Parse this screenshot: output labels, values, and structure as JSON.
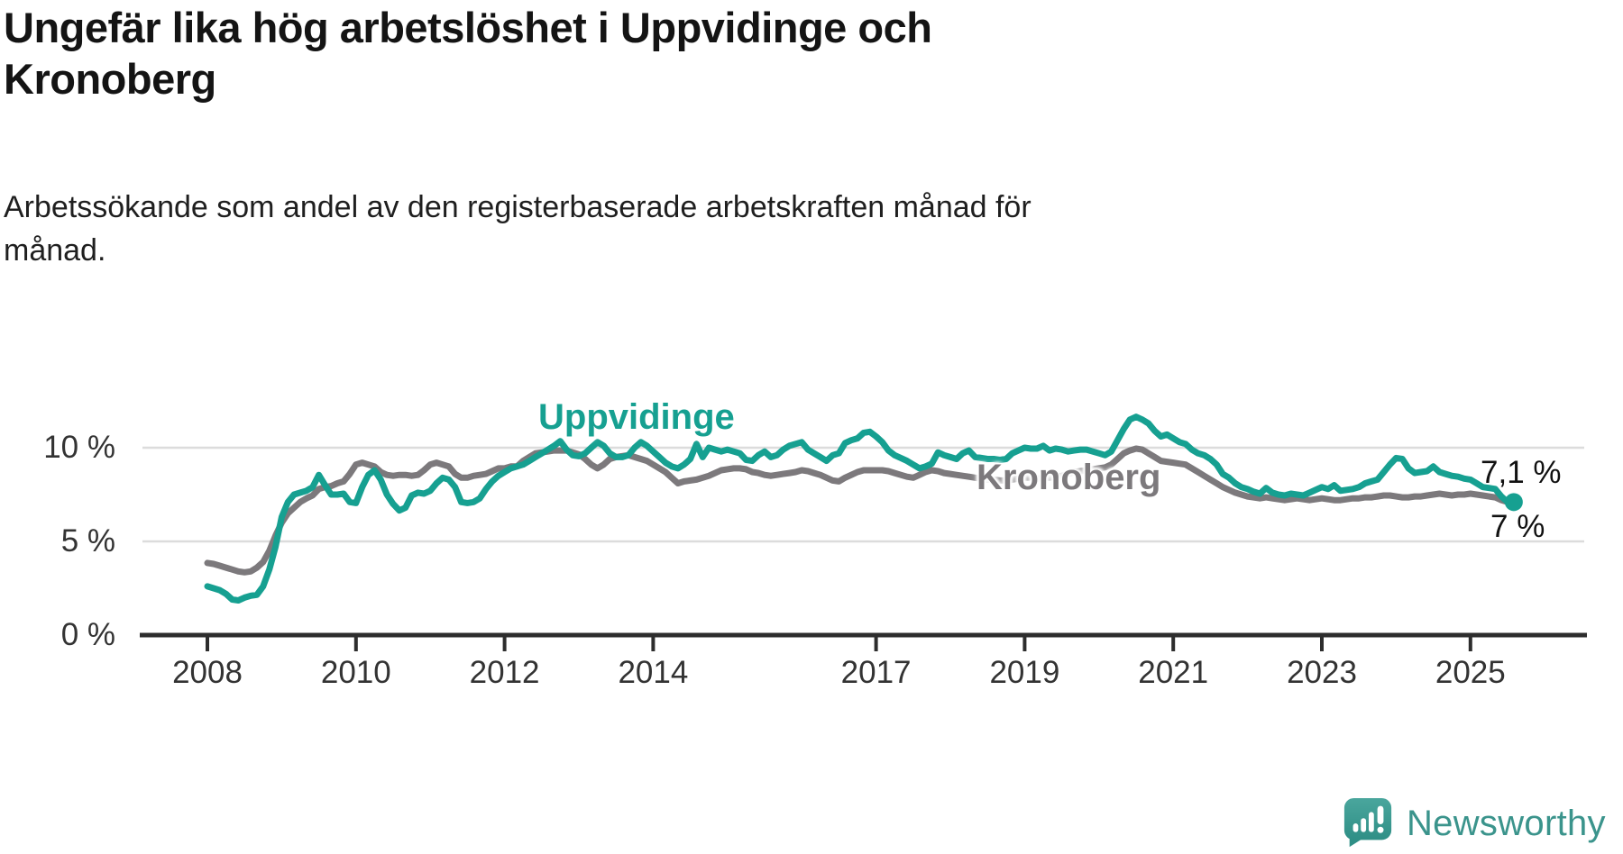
{
  "header": {
    "title": "Ungefär lika hög arbetslöshet i Uppvidinge och\nKronoberg",
    "subtitle": "Arbetssökande som andel av den registerbaserade arbetskraften månad för\nmånad."
  },
  "chart_data": {
    "type": "line",
    "title": "Ungefär lika hög arbetslöshet i Uppvidinge och Kronoberg",
    "subtitle": "Arbetssökande som andel av den registerbaserade arbetskraften månad för månad.",
    "unit": "%",
    "x_start_year": 2008,
    "x_step_months": 1,
    "x_end_label": "aug 2025",
    "grid": "horizontal-only",
    "y_axis": {
      "range": [
        0,
        12.5
      ],
      "ticks": [
        {
          "label": "0 %",
          "value": 0
        },
        {
          "label": "5 %",
          "value": 5
        },
        {
          "label": "10 %",
          "value": 10
        }
      ]
    },
    "x_axis": {
      "ticks": [
        {
          "label": "2008",
          "year": 2008
        },
        {
          "label": "2010",
          "year": 2010
        },
        {
          "label": "2012",
          "year": 2012
        },
        {
          "label": "2014",
          "year": 2014
        },
        {
          "label": "2017",
          "year": 2017
        },
        {
          "label": "2019",
          "year": 2019
        },
        {
          "label": "2021",
          "year": 2021
        },
        {
          "label": "2023",
          "year": 2023
        },
        {
          "label": "2025",
          "year": 2025
        }
      ]
    },
    "series": [
      {
        "name": "Uppvidinge",
        "color": "#16A091",
        "end_dot": true,
        "values": [
          2.6,
          2.5,
          2.4,
          2.2,
          1.9,
          1.85,
          2.0,
          2.1,
          2.15,
          2.6,
          3.5,
          4.7,
          6.3,
          7.1,
          7.5,
          7.6,
          7.7,
          7.9,
          8.55,
          8.0,
          7.5,
          7.5,
          7.55,
          7.1,
          7.05,
          7.9,
          8.55,
          8.8,
          8.3,
          7.5,
          7.0,
          6.65,
          6.8,
          7.45,
          7.6,
          7.55,
          7.7,
          8.1,
          8.4,
          8.3,
          7.9,
          7.1,
          7.05,
          7.1,
          7.3,
          7.8,
          8.2,
          8.5,
          8.7,
          8.9,
          9.0,
          9.1,
          9.3,
          9.5,
          9.7,
          9.9,
          10.1,
          10.35,
          9.9,
          9.6,
          9.55,
          9.7,
          10.0,
          10.3,
          10.1,
          9.7,
          9.5,
          9.5,
          9.6,
          10.0,
          10.3,
          10.1,
          9.8,
          9.5,
          9.2,
          9.0,
          8.9,
          9.1,
          9.4,
          10.2,
          9.5,
          10.0,
          9.9,
          9.8,
          9.9,
          9.8,
          9.7,
          9.35,
          9.3,
          9.6,
          9.8,
          9.5,
          9.6,
          9.9,
          10.1,
          10.2,
          10.3,
          9.9,
          9.7,
          9.5,
          9.3,
          9.6,
          9.7,
          10.25,
          10.4,
          10.5,
          10.8,
          10.85,
          10.6,
          10.3,
          9.85,
          9.6,
          9.45,
          9.3,
          9.1,
          8.9,
          9.0,
          9.15,
          9.75,
          9.6,
          9.5,
          9.4,
          9.7,
          9.85,
          9.5,
          9.45,
          9.4,
          9.4,
          9.35,
          9.4,
          9.7,
          9.85,
          10.0,
          9.95,
          9.95,
          10.1,
          9.85,
          9.95,
          9.9,
          9.8,
          9.85,
          9.9,
          9.9,
          9.8,
          9.7,
          9.6,
          9.8,
          10.4,
          11.0,
          11.5,
          11.65,
          11.5,
          11.3,
          10.9,
          10.6,
          10.7,
          10.5,
          10.3,
          10.2,
          9.9,
          9.7,
          9.6,
          9.4,
          9.1,
          8.6,
          8.4,
          8.1,
          7.9,
          7.8,
          7.65,
          7.55,
          7.85,
          7.6,
          7.5,
          7.45,
          7.55,
          7.5,
          7.45,
          7.6,
          7.75,
          7.9,
          7.8,
          8.0,
          7.7,
          7.75,
          7.8,
          7.9,
          8.1,
          8.2,
          8.3,
          8.7,
          9.1,
          9.45,
          9.4,
          8.9,
          8.65,
          8.7,
          8.75,
          9.0,
          8.7,
          8.6,
          8.5,
          8.45,
          8.35,
          8.3,
          8.1,
          7.9,
          7.85,
          7.8,
          7.4,
          7.1,
          7.1
        ]
      },
      {
        "name": "Kronoberg",
        "color": "#7C797C",
        "end_dot": false,
        "values": [
          3.85,
          3.8,
          3.7,
          3.6,
          3.5,
          3.4,
          3.35,
          3.4,
          3.6,
          3.9,
          4.5,
          5.3,
          6.0,
          6.5,
          6.8,
          7.1,
          7.3,
          7.45,
          7.8,
          7.9,
          7.95,
          8.1,
          8.2,
          8.6,
          9.1,
          9.2,
          9.1,
          9.0,
          8.7,
          8.55,
          8.5,
          8.55,
          8.55,
          8.5,
          8.55,
          8.8,
          9.1,
          9.2,
          9.1,
          9.0,
          8.6,
          8.4,
          8.4,
          8.5,
          8.55,
          8.6,
          8.75,
          8.9,
          8.9,
          9.0,
          9.0,
          9.3,
          9.5,
          9.7,
          9.75,
          9.8,
          9.85,
          9.85,
          9.85,
          9.75,
          9.65,
          9.4,
          9.1,
          8.9,
          9.1,
          9.4,
          9.5,
          9.55,
          9.6,
          9.5,
          9.4,
          9.3,
          9.1,
          8.9,
          8.7,
          8.4,
          8.1,
          8.2,
          8.25,
          8.3,
          8.4,
          8.5,
          8.65,
          8.8,
          8.85,
          8.9,
          8.9,
          8.85,
          8.7,
          8.65,
          8.55,
          8.5,
          8.55,
          8.6,
          8.65,
          8.7,
          8.8,
          8.75,
          8.65,
          8.55,
          8.4,
          8.25,
          8.2,
          8.4,
          8.55,
          8.7,
          8.8,
          8.8,
          8.8,
          8.8,
          8.75,
          8.65,
          8.55,
          8.45,
          8.4,
          8.55,
          8.7,
          8.8,
          8.75,
          8.65,
          8.6,
          8.55,
          8.5,
          8.45,
          8.4,
          8.35,
          8.3,
          8.3,
          8.25,
          8.25,
          8.3,
          8.35,
          8.4,
          8.4,
          8.35,
          8.4,
          8.4,
          8.45,
          8.5,
          8.6,
          8.7,
          8.75,
          8.8,
          8.85,
          8.9,
          8.95,
          9.1,
          9.4,
          9.7,
          9.85,
          9.95,
          9.9,
          9.7,
          9.5,
          9.3,
          9.25,
          9.2,
          9.15,
          9.1,
          8.9,
          8.7,
          8.5,
          8.3,
          8.1,
          7.9,
          7.75,
          7.6,
          7.5,
          7.4,
          7.35,
          7.3,
          7.35,
          7.3,
          7.25,
          7.2,
          7.25,
          7.3,
          7.25,
          7.2,
          7.25,
          7.3,
          7.25,
          7.2,
          7.2,
          7.25,
          7.3,
          7.3,
          7.35,
          7.35,
          7.4,
          7.45,
          7.45,
          7.4,
          7.35,
          7.35,
          7.4,
          7.4,
          7.45,
          7.5,
          7.55,
          7.5,
          7.45,
          7.5,
          7.5,
          7.55,
          7.5,
          7.45,
          7.4,
          7.35,
          7.2,
          7.1,
          7.0
        ]
      }
    ],
    "annotations": [
      {
        "series": "Uppvidinge",
        "text": "7,1 %"
      },
      {
        "series": "Kronoberg",
        "text": "7 %"
      }
    ]
  },
  "footer": {
    "brand": "Newsworthy",
    "brand_color": "#3B948C",
    "icon": "newsworthy-chart-bubble"
  }
}
